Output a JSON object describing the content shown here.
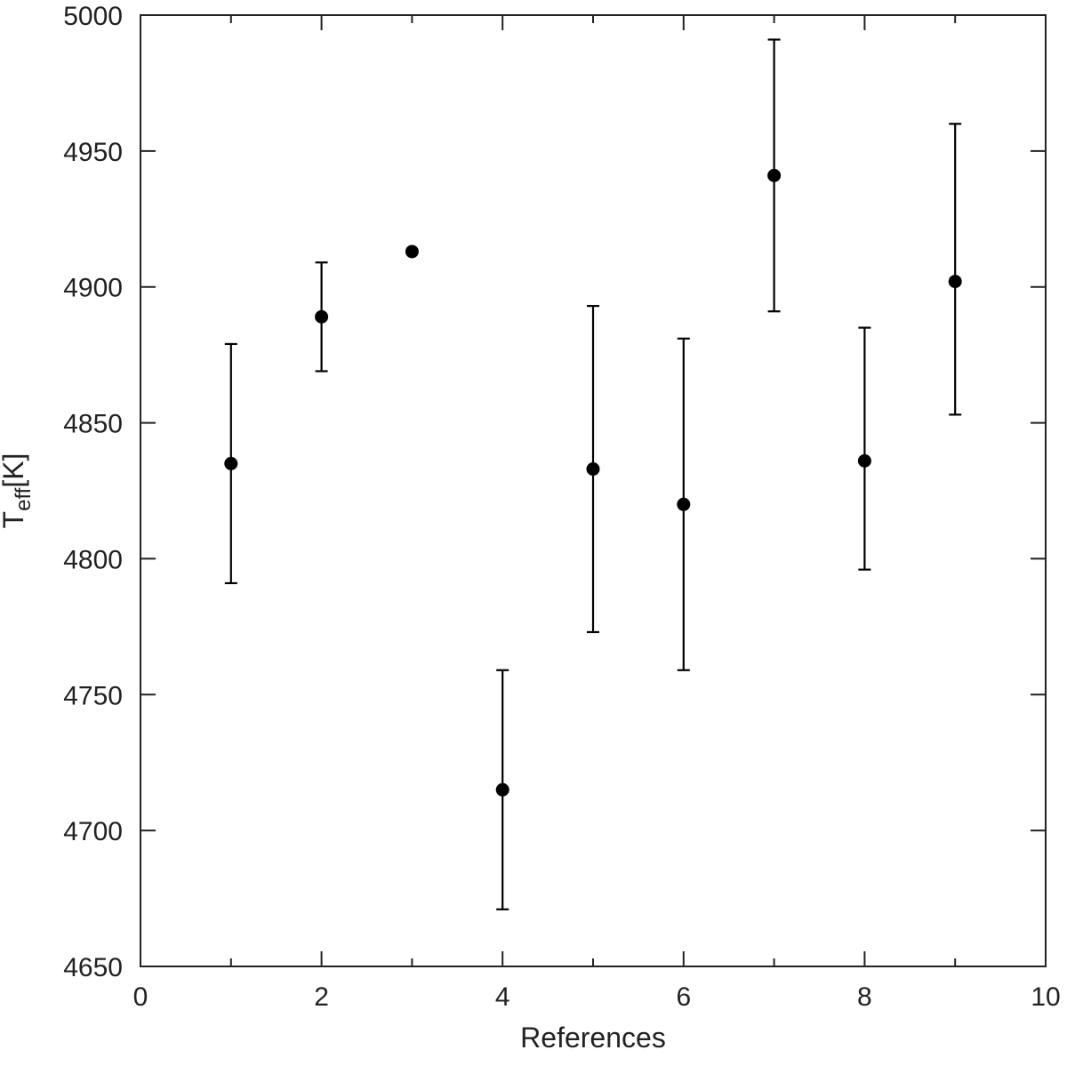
{
  "chart_data": {
    "type": "scatter",
    "xlabel": "References",
    "ylabel_main": "T",
    "ylabel_sub": "eff",
    "ylabel_unit": "[K]",
    "xlim": [
      0,
      10
    ],
    "ylim": [
      4650,
      5000
    ],
    "x_ticks": [
      0,
      2,
      4,
      6,
      8,
      10
    ],
    "x_minor_ticks": [
      1,
      3,
      5,
      7,
      9
    ],
    "y_ticks": [
      4650,
      4700,
      4750,
      4800,
      4850,
      4900,
      4950,
      5000
    ],
    "grid": false,
    "legend": "none",
    "marker_color": "#000000",
    "points": [
      {
        "x": 1,
        "y": 4835,
        "err_low": 4791,
        "err_high": 4879
      },
      {
        "x": 2,
        "y": 4889,
        "err_low": 4869,
        "err_high": 4909
      },
      {
        "x": 3,
        "y": 4913
      },
      {
        "x": 4,
        "y": 4715,
        "err_low": 4671,
        "err_high": 4759
      },
      {
        "x": 5,
        "y": 4833,
        "err_low": 4773,
        "err_high": 4893
      },
      {
        "x": 6,
        "y": 4820,
        "err_low": 4759,
        "err_high": 4881
      },
      {
        "x": 7,
        "y": 4941,
        "err_low": 4891,
        "err_high": 4991
      },
      {
        "x": 8,
        "y": 4836,
        "err_low": 4796,
        "err_high": 4885
      },
      {
        "x": 9,
        "y": 4902,
        "err_low": 4853,
        "err_high": 4960
      }
    ]
  }
}
